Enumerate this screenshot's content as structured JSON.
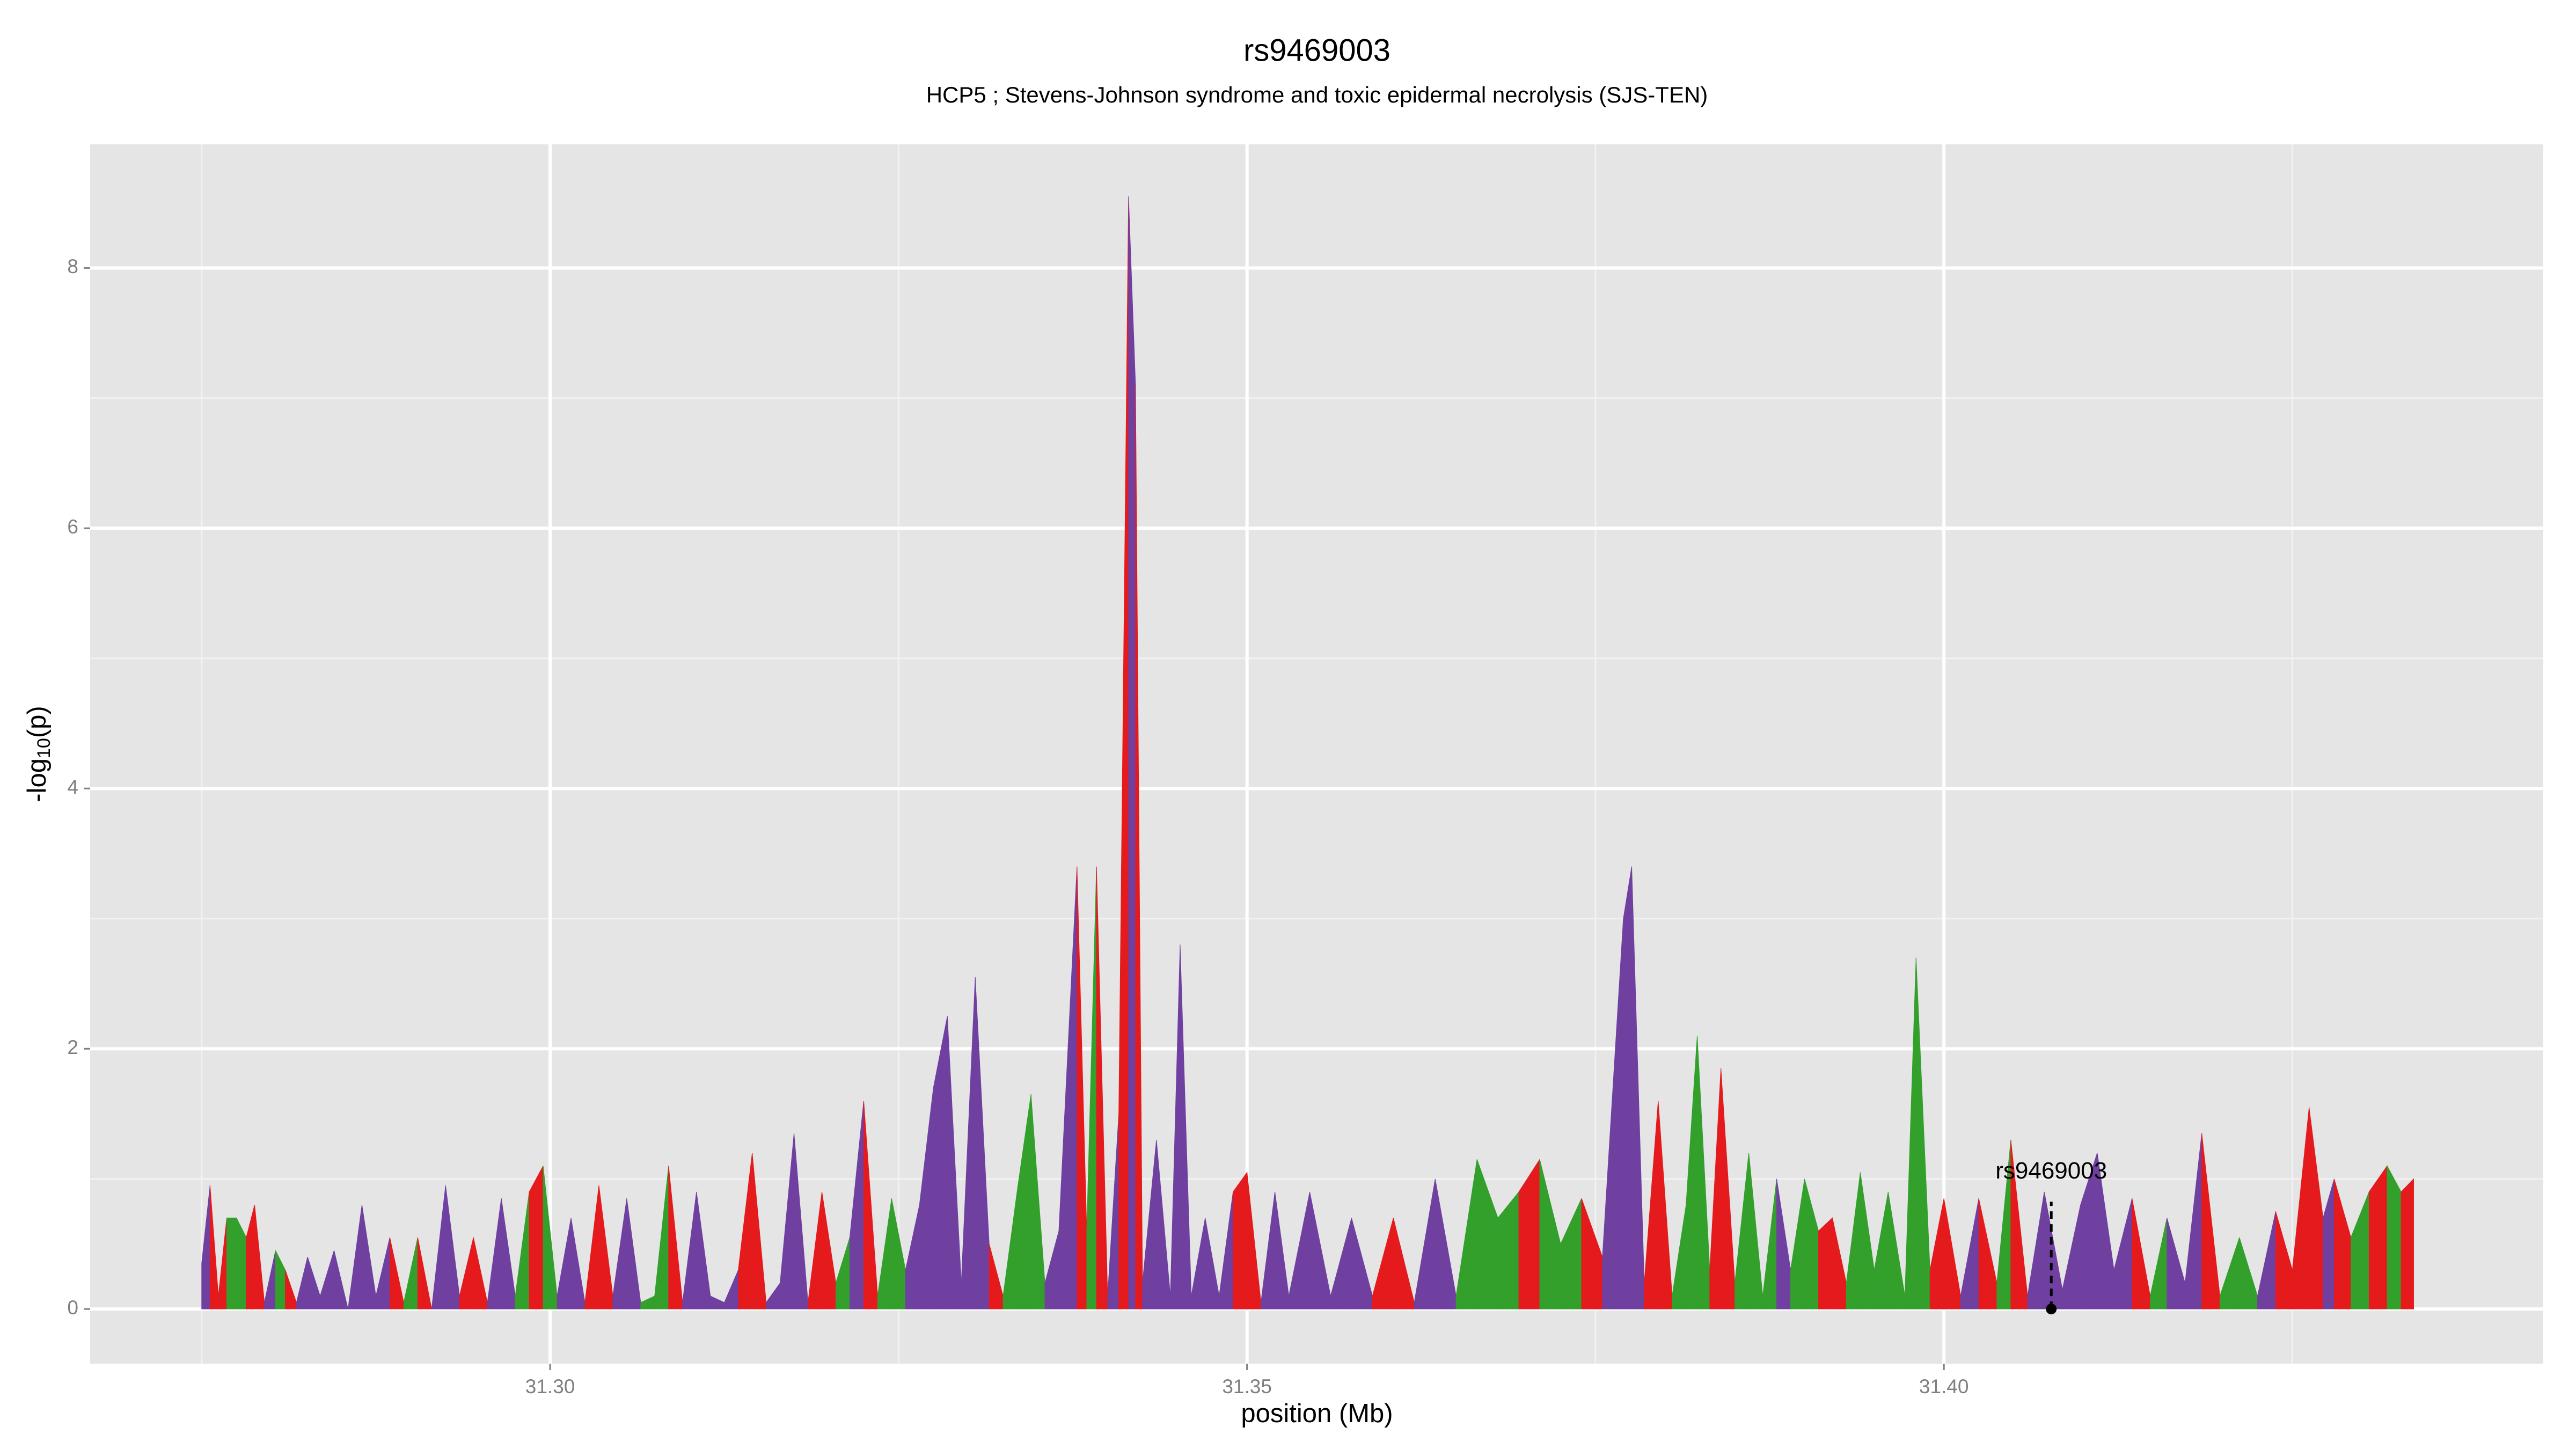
{
  "chart_data": {
    "type": "area",
    "title": "rs9469003",
    "subtitle": "HCP5 ; Stevens-Johnson syndrome and toxic epidermal necrolysis (SJS-TEN)",
    "xlabel": "position (Mb)",
    "ylabel": {
      "main": "-log",
      "sub": "10",
      "tail": "(p)"
    },
    "xlim": [
      31.267,
      31.443
    ],
    "ylim": [
      -0.42,
      8.95
    ],
    "xticks": [
      {
        "value": 31.3,
        "label": "31.30"
      },
      {
        "value": 31.35,
        "label": "31.35"
      },
      {
        "value": 31.4,
        "label": "31.40"
      }
    ],
    "yticks": [
      0,
      2,
      4,
      6,
      8
    ],
    "grid": true,
    "minor_grid": true,
    "x": [
      31.275,
      31.2756,
      31.2762,
      31.2768,
      31.2775,
      31.2782,
      31.2788,
      31.2795,
      31.2803,
      31.281,
      31.2818,
      31.2826,
      31.2835,
      31.2845,
      31.2855,
      31.2865,
      31.2875,
      31.2885,
      31.2895,
      31.2905,
      31.2915,
      31.2925,
      31.2935,
      31.2945,
      31.2955,
      31.2965,
      31.2975,
      31.2985,
      31.2995,
      31.3005,
      31.3015,
      31.3025,
      31.3035,
      31.3045,
      31.3055,
      31.3065,
      31.3075,
      31.3085,
      31.3095,
      31.3105,
      31.3115,
      31.3125,
      31.3135,
      31.3145,
      31.3155,
      31.3165,
      31.3175,
      31.3185,
      31.3195,
      31.3205,
      31.3215,
      31.3225,
      31.3235,
      31.3245,
      31.3255,
      31.3265,
      31.3275,
      31.3285,
      31.3295,
      31.3305,
      31.3315,
      31.3325,
      31.3335,
      31.3345,
      31.3355,
      31.3365,
      31.3378,
      31.3385,
      31.3392,
      31.34,
      31.3408,
      31.3415,
      31.342,
      31.3425,
      31.3435,
      31.3445,
      31.3452,
      31.346,
      31.347,
      31.348,
      31.349,
      31.35,
      31.351,
      31.352,
      31.353,
      31.3545,
      31.356,
      31.3575,
      31.359,
      31.3605,
      31.362,
      31.3635,
      31.365,
      31.3665,
      31.368,
      31.3695,
      31.371,
      31.3725,
      31.374,
      31.3755,
      31.377,
      31.3776,
      31.3785,
      31.3795,
      31.3805,
      31.3815,
      31.3823,
      31.3832,
      31.384,
      31.385,
      31.386,
      31.387,
      31.388,
      31.389,
      31.39,
      31.391,
      31.392,
      31.393,
      31.394,
      31.395,
      31.396,
      31.3972,
      31.398,
      31.399,
      31.4,
      31.4012,
      31.4025,
      31.4038,
      31.4048,
      31.406,
      31.4072,
      31.4085,
      31.4098,
      31.411,
      31.4122,
      31.4135,
      31.4148,
      31.416,
      31.4173,
      31.4185,
      31.4198,
      31.4212,
      31.4225,
      31.4238,
      31.425,
      31.4262,
      31.4272,
      31.428,
      31.4292,
      31.4305,
      31.4318,
      31.4328,
      31.4337
    ],
    "values": [
      0.35,
      0.95,
      0.1,
      0.7,
      0.7,
      0.55,
      0.8,
      0.05,
      0.45,
      0.3,
      0.05,
      0.4,
      0.1,
      0.45,
      0.0,
      0.8,
      0.1,
      0.55,
      0.05,
      0.55,
      0.0,
      0.95,
      0.1,
      0.55,
      0.05,
      0.85,
      0.1,
      0.9,
      1.1,
      0.1,
      0.7,
      0.05,
      0.95,
      0.1,
      0.85,
      0.05,
      0.1,
      1.1,
      0.05,
      0.9,
      0.1,
      0.05,
      0.3,
      1.2,
      0.05,
      0.2,
      1.35,
      0.05,
      0.9,
      0.2,
      0.55,
      1.6,
      0.1,
      0.85,
      0.3,
      0.8,
      1.7,
      2.25,
      0.2,
      2.55,
      0.5,
      0.1,
      0.9,
      1.65,
      0.2,
      0.6,
      3.4,
      0.6,
      3.4,
      0.1,
      1.5,
      8.55,
      7.1,
      0.2,
      1.3,
      0.1,
      2.8,
      0.1,
      0.7,
      0.1,
      0.9,
      1.05,
      0.05,
      0.9,
      0.1,
      0.9,
      0.1,
      0.7,
      0.1,
      0.7,
      0.05,
      1.0,
      0.1,
      1.15,
      0.7,
      0.9,
      1.15,
      0.5,
      0.85,
      0.4,
      3.0,
      3.4,
      0.2,
      1.6,
      0.1,
      0.8,
      2.1,
      0.3,
      1.85,
      0.2,
      1.2,
      0.1,
      1.0,
      0.3,
      1.0,
      0.6,
      0.7,
      0.2,
      1.05,
      0.3,
      0.9,
      0.1,
      2.7,
      0.3,
      0.85,
      0.1,
      0.85,
      0.2,
      1.3,
      0.1,
      0.9,
      0.15,
      0.8,
      1.2,
      0.3,
      0.85,
      0.1,
      0.7,
      0.2,
      1.35,
      0.1,
      0.55,
      0.1,
      0.75,
      0.3,
      1.55,
      0.7,
      1.0,
      0.55,
      0.9,
      1.1,
      0.9,
      1.0
    ],
    "colors": [
      "#7040a0",
      "#e41a1c",
      "#e41a1c",
      "#33a02c",
      "#33a02c",
      "#e41a1c",
      "#e41a1c",
      "#7040a0",
      "#33a02c",
      "#e41a1c",
      "#7040a0",
      "#7040a0",
      "#7040a0",
      "#7040a0",
      "#7040a0",
      "#7040a0",
      "#7040a0",
      "#e41a1c",
      "#33a02c",
      "#e41a1c",
      "#7040a0",
      "#7040a0",
      "#e41a1c",
      "#e41a1c",
      "#7040a0",
      "#7040a0",
      "#33a02c",
      "#e41a1c",
      "#33a02c",
      "#7040a0",
      "#7040a0",
      "#e41a1c",
      "#e41a1c",
      "#7040a0",
      "#7040a0",
      "#33a02c",
      "#33a02c",
      "#e41a1c",
      "#7040a0",
      "#7040a0",
      "#7040a0",
      "#7040a0",
      "#e41a1c",
      "#e41a1c",
      "#7040a0",
      "#7040a0",
      "#7040a0",
      "#e41a1c",
      "#e41a1c",
      "#33a02c",
      "#7040a0",
      "#e41a1c",
      "#33a02c",
      "#33a02c",
      "#7040a0",
      "#7040a0",
      "#7040a0",
      "#7040a0",
      "#7040a0",
      "#7040a0",
      "#e41a1c",
      "#33a02c",
      "#33a02c",
      "#33a02c",
      "#7040a0",
      "#7040a0",
      "#e41a1c",
      "#33a02c",
      "#e41a1c",
      "#7040a0",
      "#e41a1c",
      "#7040a0",
      "#e41a1c",
      "#7040a0",
      "#7040a0",
      "#7040a0",
      "#7040a0",
      "#7040a0",
      "#7040a0",
      "#7040a0",
      "#e41a1c",
      "#e41a1c",
      "#7040a0",
      "#7040a0",
      "#7040a0",
      "#7040a0",
      "#7040a0",
      "#7040a0",
      "#e41a1c",
      "#e41a1c",
      "#7040a0",
      "#7040a0",
      "#33a02c",
      "#33a02c",
      "#33a02c",
      "#e41a1c",
      "#33a02c",
      "#33a02c",
      "#e41a1c",
      "#7040a0",
      "#7040a0",
      "#7040a0",
      "#e41a1c",
      "#e41a1c",
      "#33a02c",
      "#33a02c",
      "#33a02c",
      "#e41a1c",
      "#e41a1c",
      "#33a02c",
      "#33a02c",
      "#33a02c",
      "#7040a0",
      "#33a02c",
      "#33a02c",
      "#e41a1c",
      "#e41a1c",
      "#33a02c",
      "#33a02c",
      "#33a02c",
      "#33a02c",
      "#33a02c",
      "#33a02c",
      "#e41a1c",
      "#e41a1c",
      "#7040a0",
      "#e41a1c",
      "#33a02c",
      "#e41a1c",
      "#7040a0",
      "#7040a0",
      "#7040a0",
      "#7040a0",
      "#7040a0",
      "#7040a0",
      "#e41a1c",
      "#33a02c",
      "#7040a0",
      "#7040a0",
      "#e41a1c",
      "#33a02c",
      "#33a02c",
      "#7040a0",
      "#e41a1c",
      "#e41a1c",
      "#e41a1c",
      "#7040a0",
      "#e41a1c",
      "#33a02c",
      "#e41a1c",
      "#33a02c",
      "#e41a1c",
      "#7040a0"
    ],
    "annotation": {
      "text": "rs9469003",
      "x": 31.4077,
      "y": 0
    }
  }
}
